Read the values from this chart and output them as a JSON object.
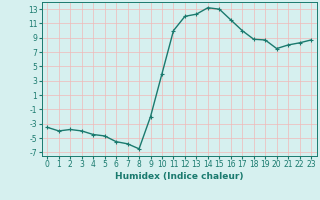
{
  "x": [
    0,
    1,
    2,
    3,
    4,
    5,
    6,
    7,
    8,
    9,
    10,
    11,
    12,
    13,
    14,
    15,
    16,
    17,
    18,
    19,
    20,
    21,
    22,
    23
  ],
  "y": [
    -3.5,
    -4.0,
    -3.8,
    -4.0,
    -4.5,
    -4.7,
    -5.5,
    -5.8,
    -6.5,
    -2.0,
    4.0,
    10.0,
    12.0,
    12.3,
    13.2,
    13.0,
    11.5,
    10.0,
    8.8,
    8.7,
    7.5,
    8.0,
    8.3,
    8.7
  ],
  "line_color": "#1a7a6e",
  "marker": "+",
  "xlabel": "Humidex (Indice chaleur)",
  "bg_color": "#d6f0ef",
  "grid_color": "#f0b8b8",
  "xlim": [
    -0.5,
    23.5
  ],
  "ylim": [
    -7.5,
    14.0
  ],
  "yticks": [
    -7,
    -5,
    -3,
    -1,
    1,
    3,
    5,
    7,
    9,
    11,
    13
  ],
  "xticks": [
    0,
    1,
    2,
    3,
    4,
    5,
    6,
    7,
    8,
    9,
    10,
    11,
    12,
    13,
    14,
    15,
    16,
    17,
    18,
    19,
    20,
    21,
    22,
    23
  ],
  "tick_fontsize": 5.5,
  "xlabel_fontsize": 6.5,
  "linewidth": 1.0,
  "markersize": 3.5
}
